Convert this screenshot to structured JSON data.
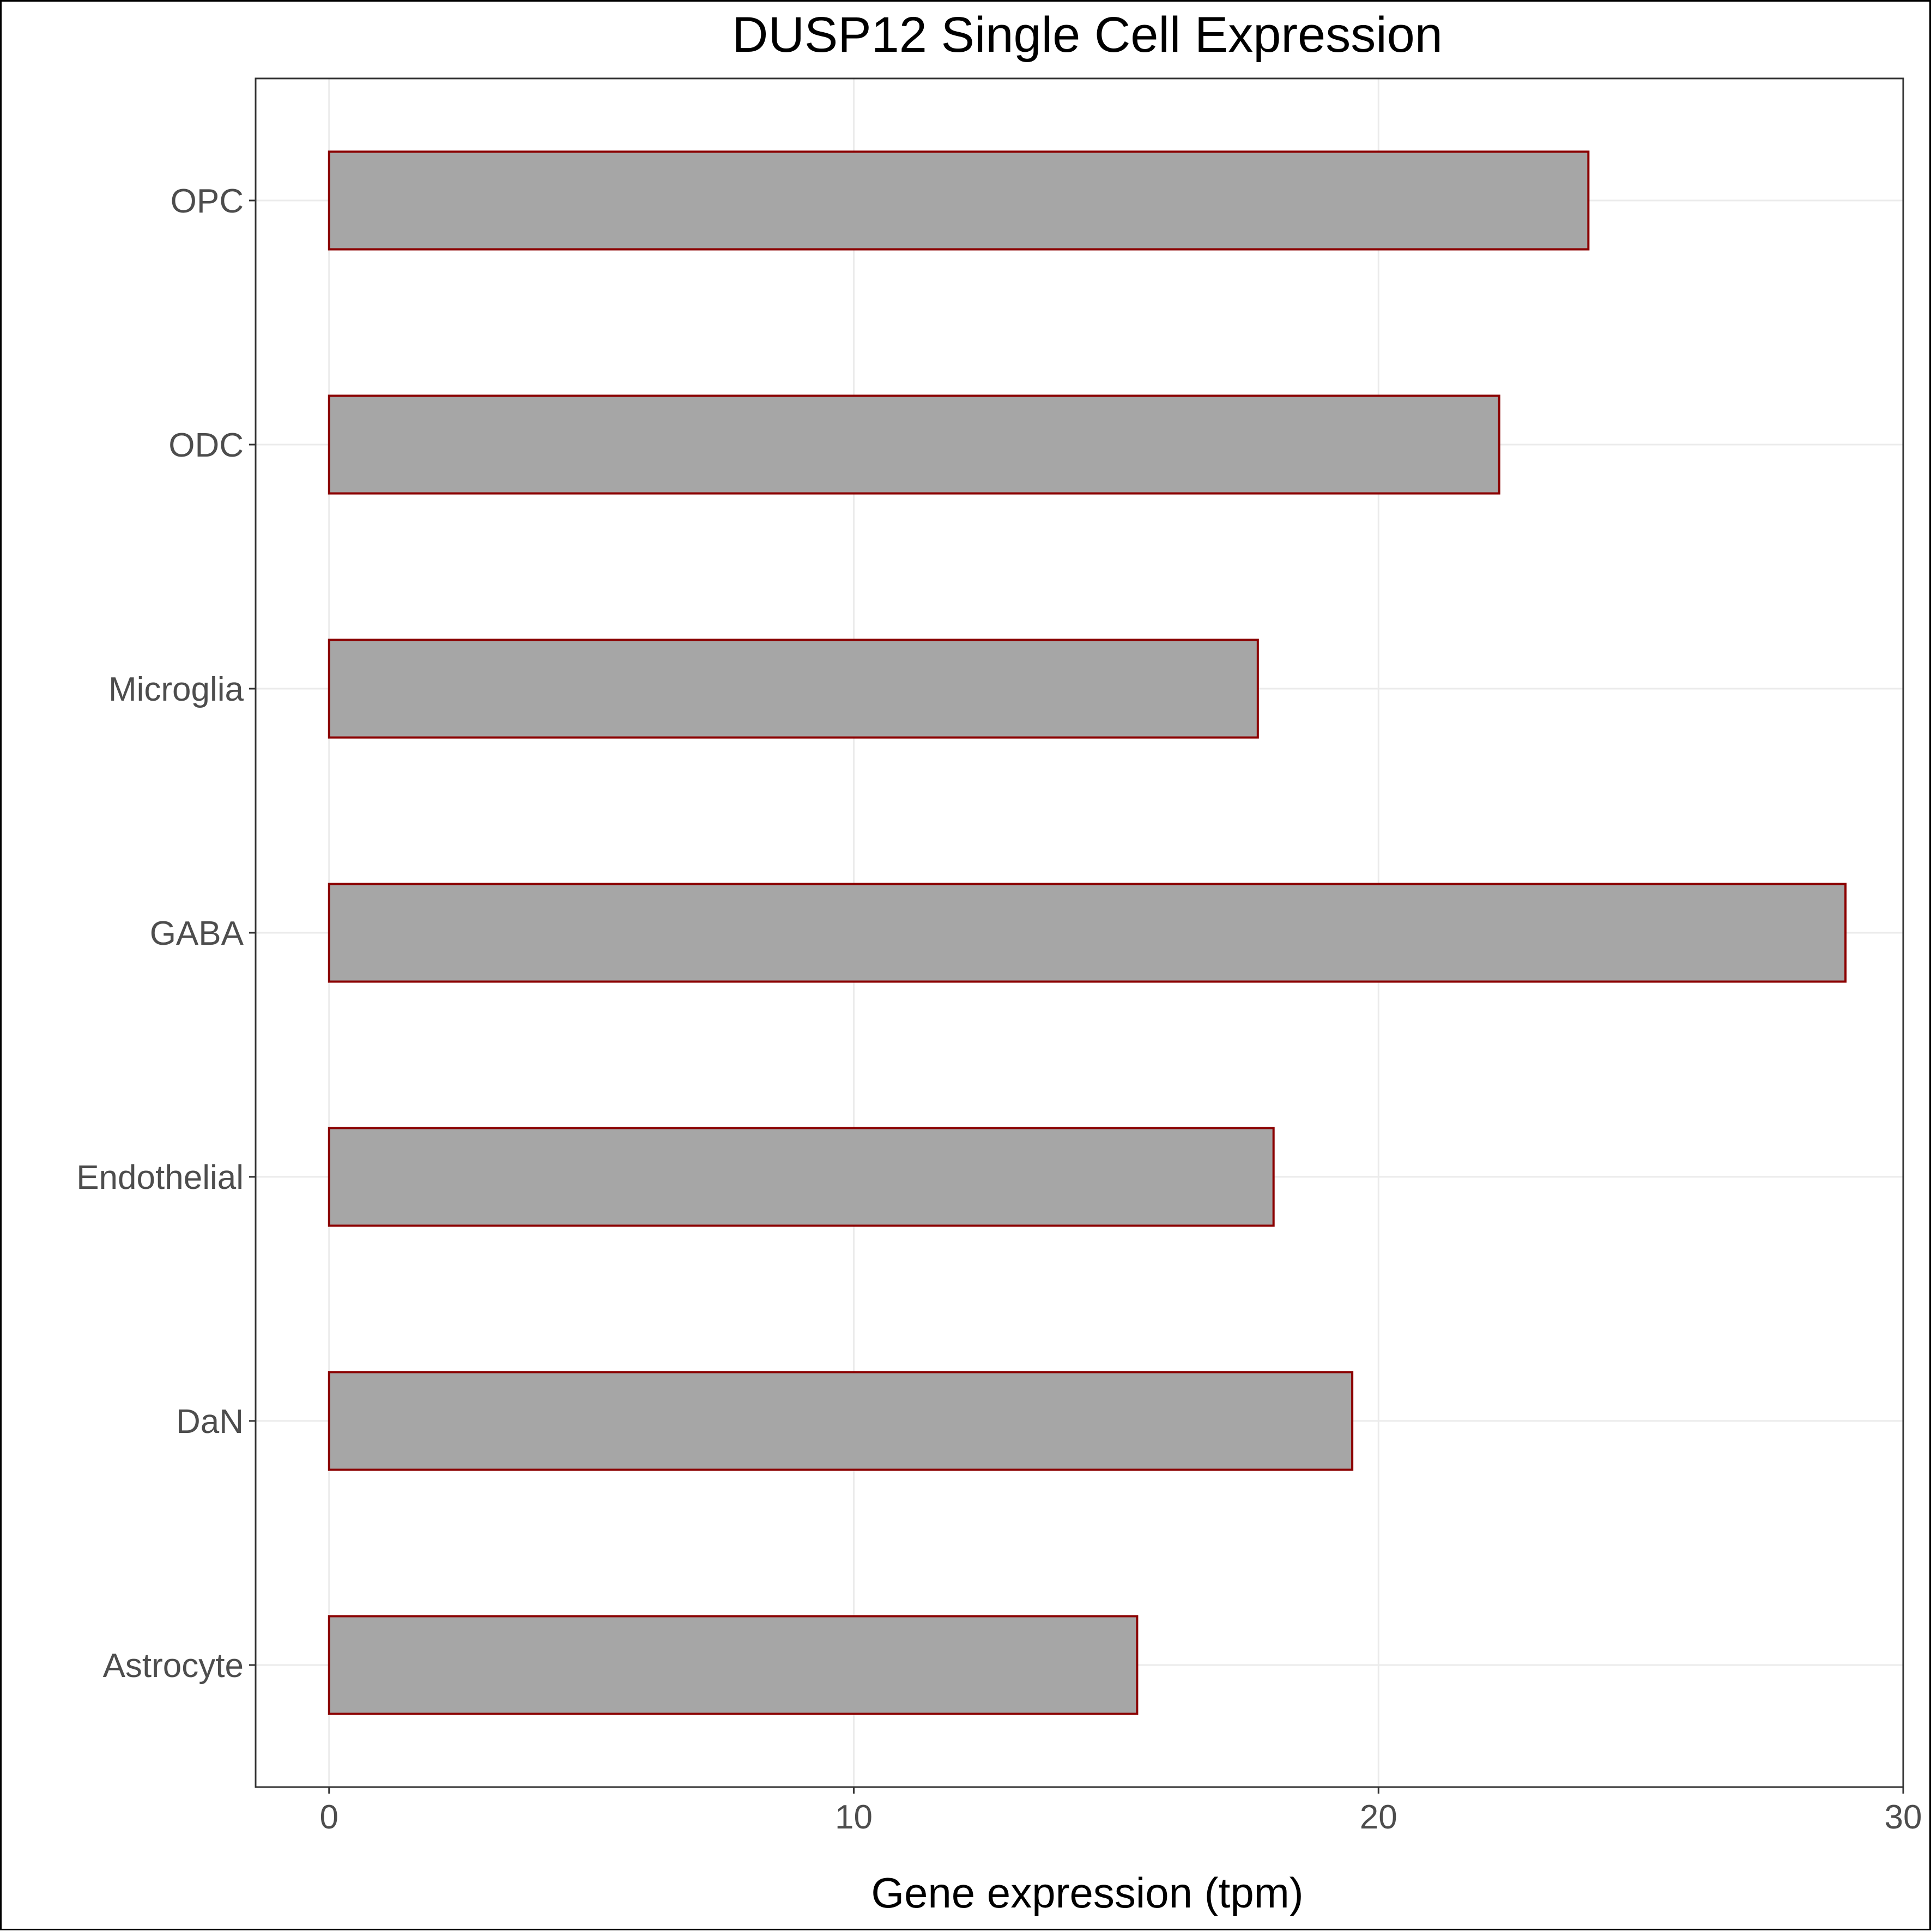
{
  "chart_data": {
    "type": "bar",
    "orientation": "horizontal",
    "title": "DUSP12 Single Cell Expression",
    "xlabel": "Gene expression (tpm)",
    "ylabel": "",
    "categories": [
      "Astrocyte",
      "DaN",
      "Endothelial",
      "GABA",
      "Microglia",
      "ODC",
      "OPC"
    ],
    "values": [
      15.4,
      19.5,
      18.0,
      28.9,
      17.7,
      22.3,
      24.0
    ],
    "xlim": [
      -1.4,
      30.0
    ],
    "xticks": [
      0,
      10,
      20,
      30
    ],
    "grid": true,
    "legend": "none",
    "colors": {
      "bar_fill": "#a6a6a6",
      "bar_outline": "#8b0000",
      "grid": "#ebebeb",
      "panel_border": "#333333",
      "tick_text": "#4d4d4d"
    }
  }
}
